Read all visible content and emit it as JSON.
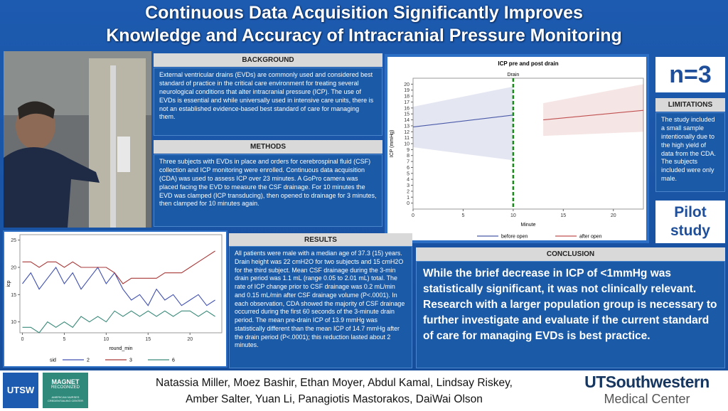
{
  "header": {
    "title_lines": [
      "Continuous Data Acquisition Significantly Improves",
      "Knowledge and Accuracy of Intracranial Pressure Monitoring"
    ]
  },
  "sections": {
    "background": {
      "heading": "BACKGROUND",
      "body": "External ventricular drains (EVDs) are commonly used and considered best standard of practice in the critical care environment for treating several neurological conditions that alter intracranial pressure (ICP). The use of EVDs is essential and while universally used in intensive care units, there is not an established evidence-based best standard of care for managing them."
    },
    "methods": {
      "heading": "METHODS",
      "body": "Three subjects with EVDs in place and orders for cerebrospinal fluid (CSF) collection and ICP monitoring were enrolled. Continuous data acquisition (CDA) was used to assess ICP over 23 minutes. A GoPro camera was placed facing the EVD to measure the CSF drainage. For 10 minutes the EVD was clamped (ICP transducing), then opened to drainage for 3 minutes, then clamped for 10 minutes again."
    },
    "results": {
      "heading": "RESULTS",
      "body": "All patients were male with a median age of 37.3 (15) years. Drain height was 22 cmH2O for two subjects and 15 cmH2O for the third subject. Mean CSF drainage during the 3-min drain period was 1.1 mL (range 0.05 to 2.01 mL) total. The rate of ICP change prior to CSF drainage was 0.2 mL/min and 0.15 mL/min after CSF drainage volume (P<.0001). In each observation, CDA showed the majority of CSF drainage occurred during the first 60 seconds of the 3-minute drain period. The mean pre-drain ICP of 13.9 mmHg was statistically different than the mean ICP of 14.7 mmHg after the drain period (P<.0001); this reduction lasted about 2 minutes."
    },
    "limitations": {
      "heading": "LIMITATIONS",
      "body": "The study included a small sample intentionally due to the high yield of data from the CDA. The subjects included were only male."
    },
    "conclusion": {
      "heading": "CONCLUSION",
      "body": "While the brief decrease in ICP of <1mmHg was statistically significant, it was not clinically relevant. Research with a larger population group is necessary to further investigate and evaluate if the current standard of care for managing EVDs is best practice."
    }
  },
  "badges": {
    "n": "n=3",
    "pilot": "Pilot study"
  },
  "authors": [
    "Natassia Miller, Moez Bashir, Ethan Moyer, Abdul Kamal, Lindsay Riskey,",
    "Amber Salter, Yuan Li, Panagiotis Mastorakos, DaiWai Olson"
  ],
  "logos": {
    "utsw": "UTSW",
    "magnet": "MAGNET",
    "magnet_sub": "RECOGNIZED",
    "magnet_org": "AMERICAN NURSES CREDENTIALING CENTER",
    "ut_name": "UTSouthwestern",
    "ut_sub": "Medical Center"
  },
  "charts": [
    {
      "type": "line",
      "title": "ICP pre and post drain",
      "xlabel": "Minute",
      "ylabel": "ICP (mmHg)",
      "annotation": {
        "text": "Drain",
        "x": 10,
        "color": "#1a8a1a"
      },
      "xlim": [
        0,
        23
      ],
      "xticks": [
        0,
        5,
        10,
        15,
        20
      ],
      "ylim": [
        -1,
        21
      ],
      "yticks": [
        0,
        1,
        2,
        3,
        4,
        5,
        6,
        7,
        8,
        9,
        10,
        11,
        12,
        13,
        14,
        15,
        16,
        17,
        18,
        19,
        20
      ],
      "grid": false,
      "series": [
        {
          "name": "before open",
          "color": "#4a5aa8",
          "x": [
            0,
            10
          ],
          "values": [
            12.8,
            14.8
          ],
          "band_lower": [
            9.4,
            7.2
          ],
          "band_upper": [
            16.2,
            19.6
          ]
        },
        {
          "name": "after open",
          "color": "#c05050",
          "x": [
            13,
            23
          ],
          "values": [
            14.0,
            15.6
          ],
          "band_lower": [
            11.3,
            12.0
          ],
          "band_upper": [
            16.8,
            20.0
          ]
        }
      ]
    },
    {
      "type": "line",
      "xlabel": "round_min",
      "ylabel": "icp",
      "legend_title": "sid",
      "xlim": [
        -0.3,
        23.8
      ],
      "xticks": [
        0,
        5,
        10,
        15,
        20
      ],
      "ylim": [
        8,
        26
      ],
      "yticks": [
        10,
        15,
        20,
        25
      ],
      "grid": false,
      "x": [
        0,
        1,
        2,
        3,
        4,
        5,
        6,
        7,
        8,
        9,
        10,
        11,
        12,
        13,
        14,
        15,
        16,
        17,
        18,
        19,
        20,
        21,
        22,
        23
      ],
      "series": [
        {
          "name": "2",
          "color": "#4050b0",
          "values": [
            17,
            19,
            16,
            18,
            20,
            17,
            19,
            16,
            18,
            20,
            17,
            19,
            16,
            14,
            15,
            13,
            16,
            14,
            15,
            13,
            14,
            15,
            13,
            14
          ]
        },
        {
          "name": "3",
          "color": "#a83838",
          "values": [
            21,
            21,
            20,
            21,
            21,
            20,
            21,
            20,
            20,
            20,
            20,
            19,
            17,
            18,
            18,
            18,
            18,
            19,
            19,
            19,
            20,
            21,
            22,
            23
          ]
        },
        {
          "name": "6",
          "color": "#3a8a7a",
          "values": [
            9,
            9,
            8,
            10,
            9,
            10,
            9,
            11,
            10,
            11,
            10,
            12,
            11,
            12,
            11,
            12,
            11,
            12,
            11,
            12,
            12,
            11,
            12,
            11
          ]
        }
      ]
    }
  ]
}
